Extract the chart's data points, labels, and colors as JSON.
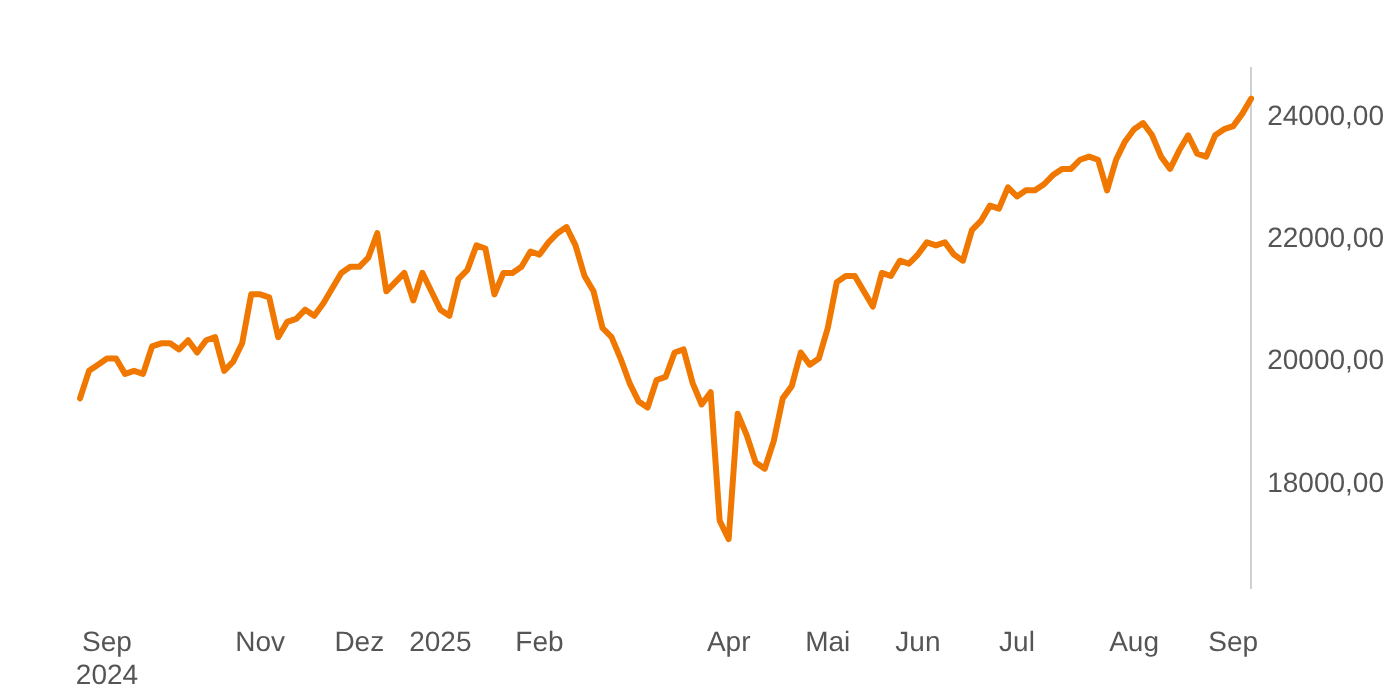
{
  "chart_data": {
    "type": "line",
    "categories": [
      null,
      null,
      null,
      "Sep\n2024",
      null,
      null,
      null,
      null,
      null,
      null,
      null,
      null,
      null,
      null,
      null,
      null,
      null,
      null,
      null,
      null,
      "Nov",
      null,
      null,
      null,
      null,
      null,
      null,
      null,
      null,
      null,
      null,
      "Dez",
      null,
      null,
      null,
      null,
      null,
      null,
      null,
      null,
      "2025",
      null,
      null,
      null,
      null,
      null,
      null,
      null,
      null,
      null,
      null,
      "Feb",
      null,
      null,
      null,
      null,
      null,
      null,
      null,
      null,
      null,
      null,
      null,
      null,
      null,
      null,
      null,
      null,
      null,
      null,
      null,
      null,
      "Apr",
      null,
      null,
      null,
      null,
      null,
      null,
      null,
      null,
      null,
      null,
      "Mai",
      null,
      null,
      null,
      null,
      null,
      null,
      null,
      null,
      null,
      "Jun",
      null,
      null,
      null,
      null,
      null,
      null,
      null,
      null,
      null,
      null,
      "Jul",
      null,
      null,
      null,
      null,
      null,
      null,
      null,
      null,
      null,
      null,
      null,
      null,
      "Aug",
      null,
      null,
      null,
      null,
      null,
      null,
      null,
      null,
      null,
      null,
      "Sep",
      null,
      null
    ],
    "series": [
      {
        "color": "#f07800",
        "values": [
          19400,
          19850,
          19950,
          20050,
          20050,
          19800,
          19850,
          19800,
          20250,
          20300,
          20300,
          20200,
          20350,
          20150,
          20350,
          20400,
          19850,
          20000,
          20300,
          21100,
          21100,
          21050,
          20400,
          20650,
          20700,
          20850,
          20750,
          20950,
          21200,
          21450,
          21550,
          21550,
          21700,
          22100,
          21150,
          21300,
          21450,
          21000,
          21450,
          21150,
          20850,
          20750,
          21350,
          21500,
          21900,
          21850,
          21100,
          21450,
          21450,
          21550,
          21800,
          21750,
          21950,
          22100,
          22200,
          21900,
          21400,
          21150,
          20550,
          20400,
          20050,
          19650,
          19350,
          19250,
          19700,
          19750,
          20150,
          20200,
          19650,
          19300,
          19500,
          17400,
          17100,
          19150,
          18800,
          18350,
          18250,
          18700,
          19400,
          19600,
          20150,
          19950,
          20050,
          20550,
          21300,
          21400,
          21400,
          21150,
          20900,
          21450,
          21400,
          21650,
          21600,
          21750,
          21950,
          21900,
          21950,
          21750,
          21650,
          22150,
          22300,
          22550,
          22500,
          22850,
          22700,
          22800,
          22800,
          22900,
          23050,
          23150,
          23150,
          23300,
          23350,
          23300,
          22800,
          23300,
          23600,
          23800,
          23900,
          23700,
          23350,
          23150,
          23450,
          23700,
          23400,
          23350,
          23700,
          23800,
          23850,
          24050,
          24300
        ]
      }
    ],
    "ylim": [
      16300,
      24800
    ],
    "yticks": [
      {
        "value": 18000,
        "label": "18000,00"
      },
      {
        "value": 20000,
        "label": "20000,00"
      },
      {
        "value": 22000,
        "label": "22000,00"
      },
      {
        "value": 24000,
        "label": "24000,00"
      }
    ],
    "grid": false,
    "legend": false,
    "marker": "none",
    "line_style": "solid"
  }
}
